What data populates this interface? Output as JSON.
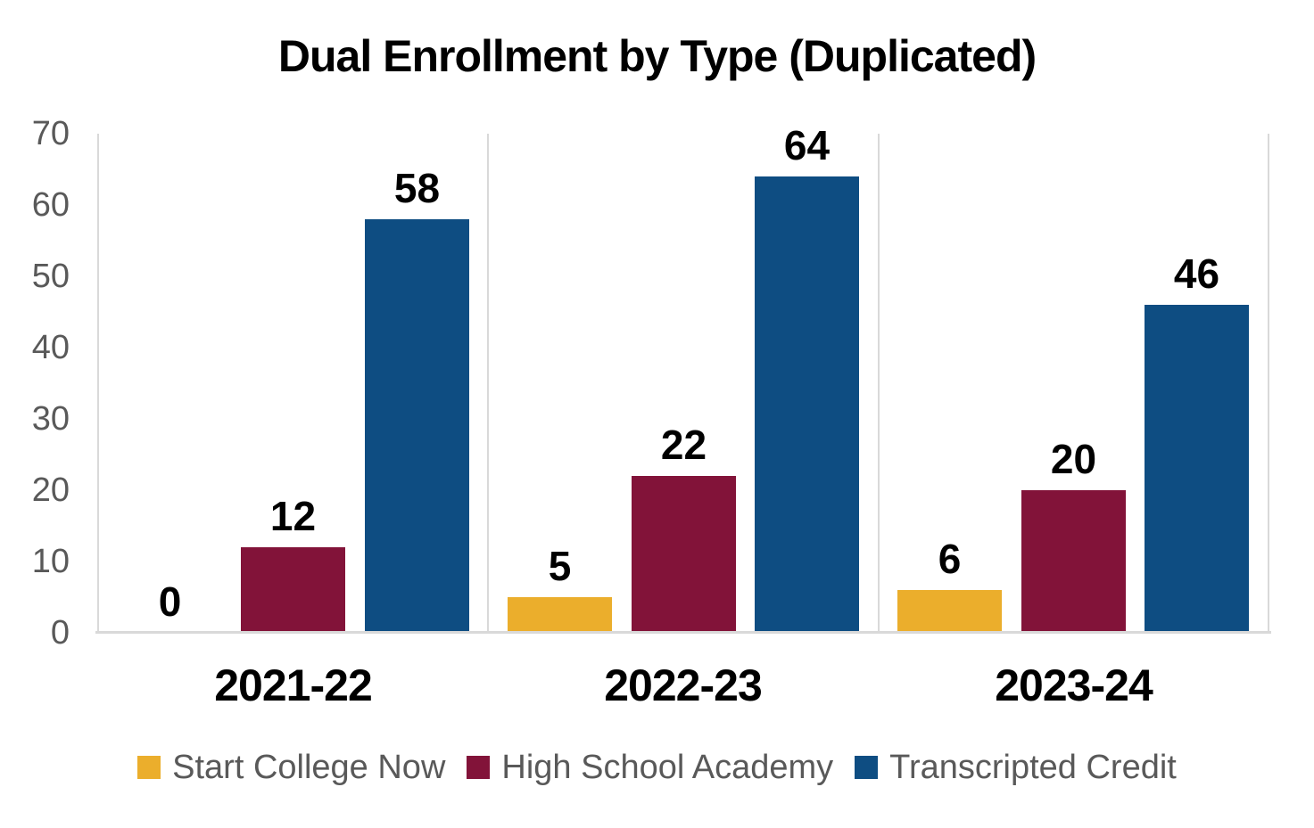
{
  "chart_data": {
    "type": "bar",
    "title": "Dual Enrollment by Type (Duplicated)",
    "categories": [
      "2021-22",
      "2022-23",
      "2023-24"
    ],
    "series": [
      {
        "name": "Start College Now",
        "color": "#EBAE2C",
        "values": [
          0,
          5,
          6
        ]
      },
      {
        "name": "High School Academy",
        "color": "#821339",
        "values": [
          12,
          22,
          20
        ]
      },
      {
        "name": "Transcripted Credit",
        "color": "#0E4D82",
        "values": [
          58,
          64,
          46
        ]
      }
    ],
    "ylim": [
      0,
      70
    ],
    "yticks": [
      0,
      10,
      20,
      30,
      40,
      50,
      60,
      70
    ],
    "xlabel": "",
    "ylabel": "",
    "grid": "vertical-category-separators-only",
    "legend_position": "bottom",
    "data_labels": "outside-end",
    "colors": {
      "background": "#FFFFFF",
      "axis_line": "#D9D9D9",
      "tick_label_text": "#595959",
      "legend_text": "#595959",
      "data_label_text": "#000000",
      "title_text": "#000000"
    }
  }
}
